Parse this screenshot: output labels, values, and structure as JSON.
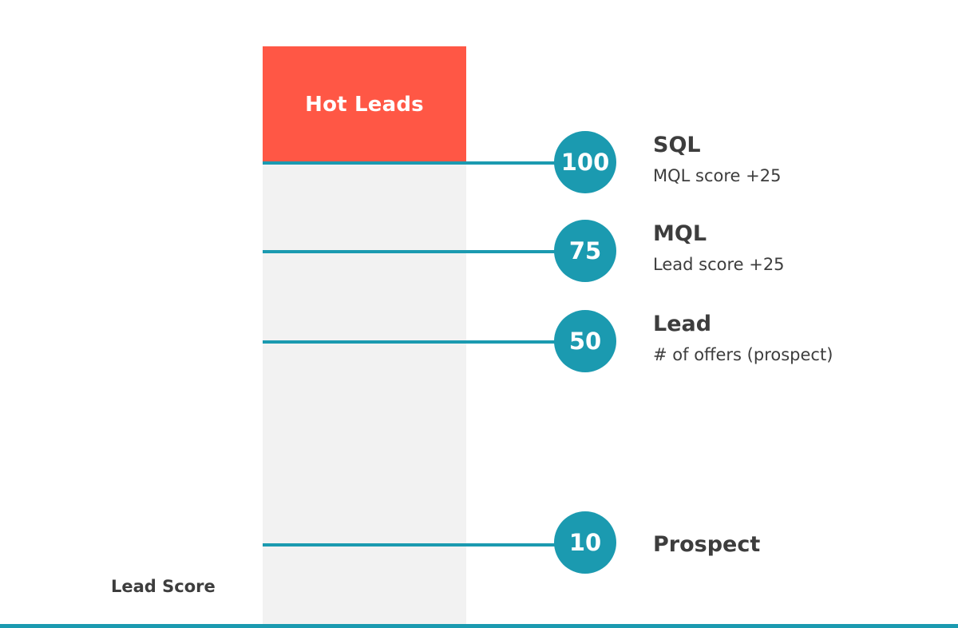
{
  "colors": {
    "accent": "#1b9ab0",
    "hot": "#ff5745",
    "column": "#f2f2f2",
    "text": "#3d3d3d"
  },
  "hot_block": {
    "label": "Hot Leads"
  },
  "axis_label": "Lead Score",
  "levels": [
    {
      "score": "100",
      "title": "SQL",
      "subtitle": "MQL score +25"
    },
    {
      "score": "75",
      "title": "MQL",
      "subtitle": "Lead score +25"
    },
    {
      "score": "50",
      "title": "Lead",
      "subtitle": "# of offers (prospect)"
    },
    {
      "score": "10",
      "title": "Prospect",
      "subtitle": ""
    }
  ]
}
